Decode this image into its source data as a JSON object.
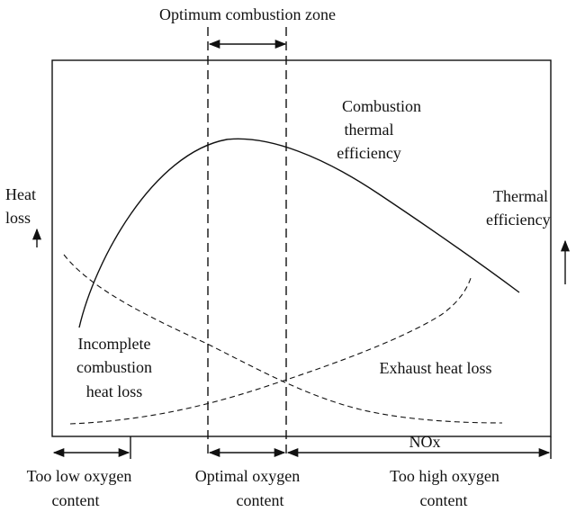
{
  "diagram": {
    "top_zone_label": "Optimum combustion zone",
    "left_axis": {
      "line1": "Heat",
      "line2": "loss"
    },
    "right_axis": {
      "line1": "Thermal",
      "line2": "efficiency"
    },
    "curves": {
      "efficiency": {
        "line1": "Combustion",
        "line2": "thermal",
        "line3": "efficiency"
      },
      "incomplete": {
        "line1": "Incomplete",
        "line2": "combustion",
        "line3": "heat loss"
      },
      "exhaust": "Exhaust heat loss"
    },
    "nox_label": "NOx",
    "bottom_zones": [
      {
        "line1": "Too low oxygen",
        "line2": "content"
      },
      {
        "line1": "Optimal oxygen",
        "line2": "content"
      },
      {
        "line1": "Too high oxygen",
        "line2": "content"
      }
    ]
  }
}
